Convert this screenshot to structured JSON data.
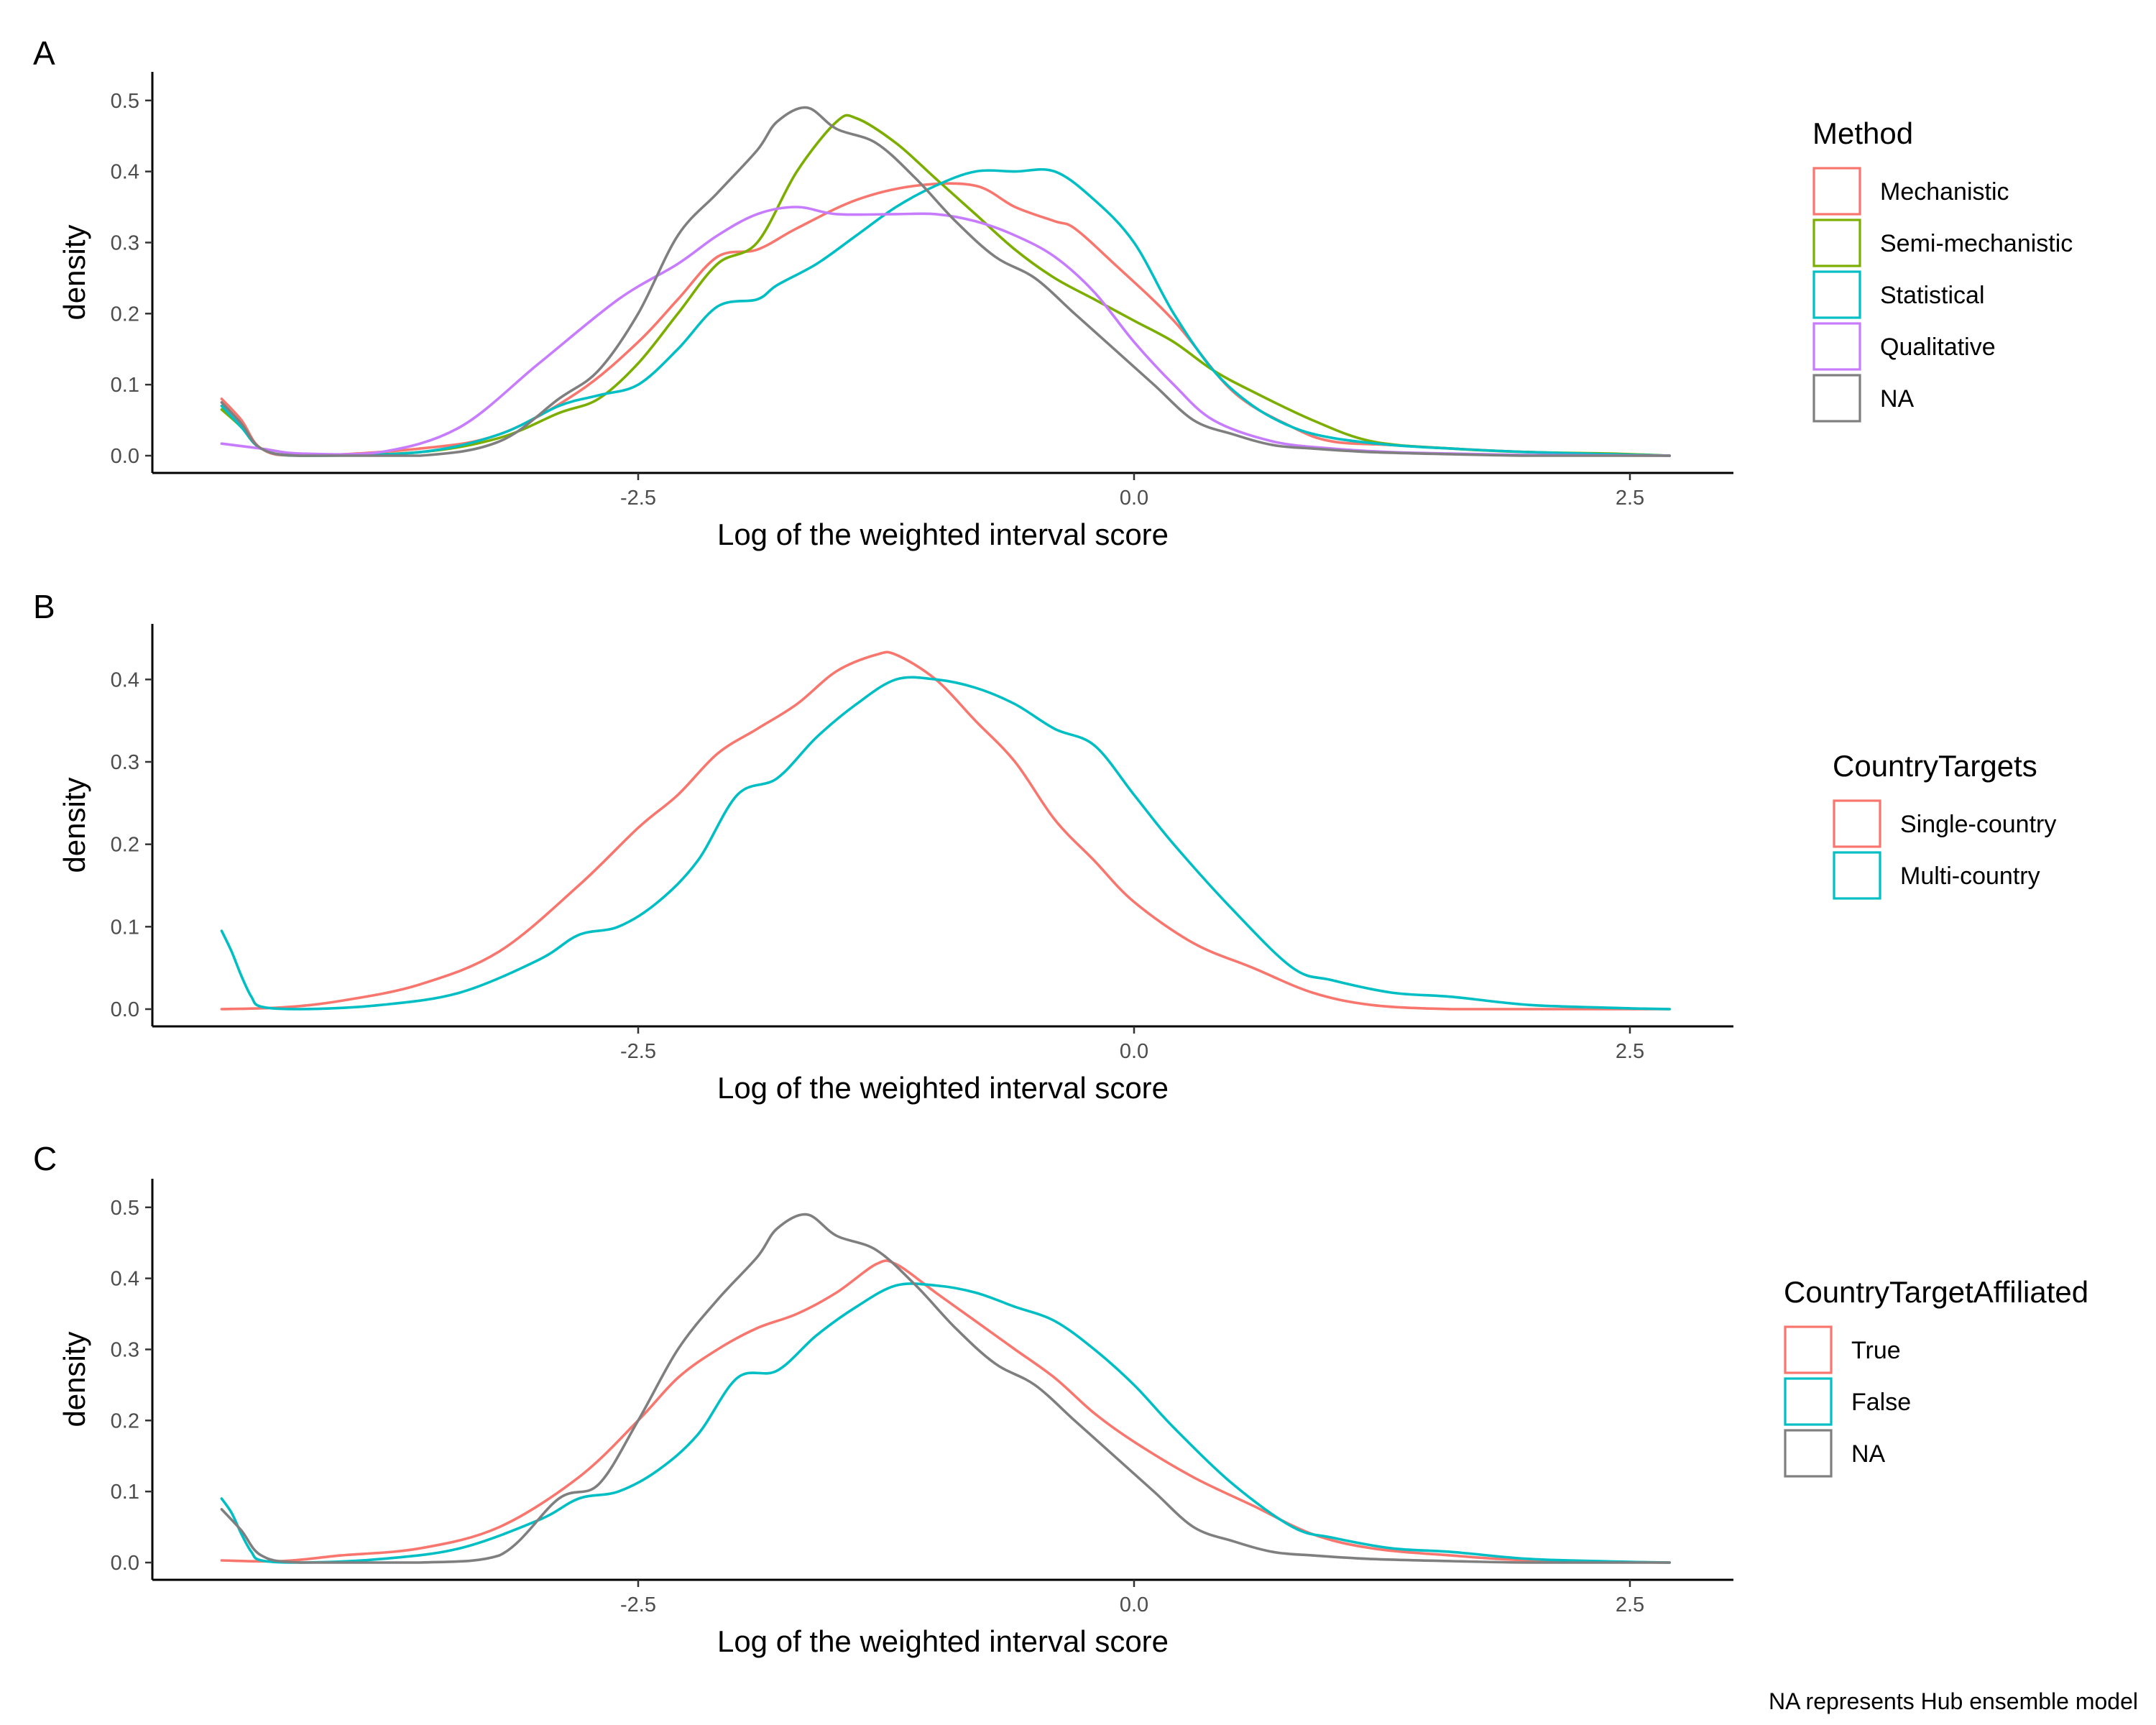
{
  "caption": "NA represents Hub ensemble model",
  "colors": {
    "red": "#F8766D",
    "green": "#7CAE00",
    "cyan": "#00BFC4",
    "purple": "#C77CFF",
    "gray": "#7F7F7F"
  },
  "chart_data": [
    {
      "type": "line",
      "tag": "A",
      "xlabel": "Log of the weighted interval score",
      "ylabel": "density",
      "xlim": [
        -4.8,
        3.0
      ],
      "ylim": [
        0,
        0.52
      ],
      "xticks": [
        {
          "v": -2.5,
          "label": "-2.5"
        },
        {
          "v": 0,
          "label": "0.0"
        },
        {
          "v": 2.5,
          "label": "2.5"
        }
      ],
      "yticks": [
        {
          "v": 0,
          "label": "0.0"
        },
        {
          "v": 0.1,
          "label": "0.1"
        },
        {
          "v": 0.2,
          "label": "0.2"
        },
        {
          "v": 0.3,
          "label": "0.3"
        },
        {
          "v": 0.4,
          "label": "0.4"
        },
        {
          "v": 0.5,
          "label": "0.5"
        }
      ],
      "legend_title": "Method",
      "legend_position": "right",
      "series": [
        {
          "name": "Mechanistic",
          "color": "#F8766D",
          "x": [
            -4.6,
            -4.5,
            -4.4,
            -4.2,
            -3.6,
            -3.2,
            -2.8,
            -2.5,
            -2.3,
            -2.1,
            -1.9,
            -1.7,
            -1.4,
            -1.1,
            -0.8,
            -0.6,
            -0.4,
            -0.3,
            -0.1,
            0.2,
            0.5,
            0.8,
            1.0,
            1.3,
            1.6,
            2.0,
            2.5,
            2.7
          ],
          "y": [
            0.08,
            0.05,
            0.01,
            0.0,
            0.01,
            0.03,
            0.09,
            0.16,
            0.22,
            0.28,
            0.29,
            0.32,
            0.36,
            0.38,
            0.38,
            0.35,
            0.33,
            0.32,
            0.27,
            0.19,
            0.09,
            0.04,
            0.02,
            0.015,
            0.01,
            0.005,
            0.001,
            0.0
          ]
        },
        {
          "name": "Semi-mechanistic",
          "color": "#7CAE00",
          "x": [
            -4.6,
            -4.5,
            -4.4,
            -4.2,
            -3.6,
            -3.2,
            -2.9,
            -2.7,
            -2.5,
            -2.3,
            -2.1,
            -1.9,
            -1.7,
            -1.5,
            -1.4,
            -1.2,
            -1.0,
            -0.8,
            -0.6,
            -0.4,
            -0.2,
            0.0,
            0.2,
            0.4,
            0.6,
            0.9,
            1.2,
            1.6,
            2.0,
            2.4,
            2.7
          ],
          "y": [
            0.065,
            0.04,
            0.01,
            0.0,
            0.005,
            0.025,
            0.06,
            0.08,
            0.13,
            0.2,
            0.27,
            0.3,
            0.4,
            0.47,
            0.475,
            0.44,
            0.39,
            0.34,
            0.29,
            0.25,
            0.22,
            0.19,
            0.16,
            0.12,
            0.09,
            0.05,
            0.02,
            0.01,
            0.005,
            0.003,
            0.0
          ]
        },
        {
          "name": "Statistical",
          "color": "#00BFC4",
          "x": [
            -4.6,
            -4.5,
            -4.4,
            -4.2,
            -3.6,
            -3.2,
            -2.9,
            -2.7,
            -2.5,
            -2.3,
            -2.1,
            -1.9,
            -1.8,
            -1.6,
            -1.4,
            -1.2,
            -1.0,
            -0.8,
            -0.6,
            -0.4,
            -0.2,
            0.0,
            0.2,
            0.4,
            0.6,
            0.8,
            1.0,
            1.3,
            1.6,
            2.0,
            2.7
          ],
          "y": [
            0.07,
            0.04,
            0.01,
            0.0,
            0.005,
            0.03,
            0.07,
            0.085,
            0.1,
            0.15,
            0.21,
            0.22,
            0.24,
            0.27,
            0.31,
            0.35,
            0.38,
            0.4,
            0.4,
            0.4,
            0.36,
            0.3,
            0.2,
            0.12,
            0.07,
            0.04,
            0.025,
            0.015,
            0.01,
            0.005,
            0.0
          ]
        },
        {
          "name": "Qualitative",
          "color": "#C77CFF",
          "x": [
            -4.6,
            -4.4,
            -4.2,
            -3.8,
            -3.4,
            -3.0,
            -2.6,
            -2.3,
            -2.1,
            -1.9,
            -1.7,
            -1.5,
            -1.2,
            -1.0,
            -0.8,
            -0.6,
            -0.4,
            -0.2,
            0.0,
            0.2,
            0.4,
            0.7,
            1.0,
            1.3,
            1.6,
            2.0,
            2.7
          ],
          "y": [
            0.017,
            0.01,
            0.003,
            0.005,
            0.04,
            0.13,
            0.22,
            0.27,
            0.31,
            0.34,
            0.35,
            0.34,
            0.34,
            0.34,
            0.33,
            0.31,
            0.28,
            0.23,
            0.16,
            0.1,
            0.05,
            0.02,
            0.01,
            0.005,
            0.003,
            0.001,
            0.0
          ]
        },
        {
          "name": "NA",
          "color": "#7F7F7F",
          "x": [
            -4.6,
            -4.5,
            -4.4,
            -4.2,
            -3.6,
            -3.2,
            -2.9,
            -2.7,
            -2.5,
            -2.3,
            -2.1,
            -1.9,
            -1.8,
            -1.65,
            -1.5,
            -1.3,
            -1.1,
            -0.9,
            -0.7,
            -0.5,
            -0.3,
            -0.1,
            0.1,
            0.3,
            0.5,
            0.7,
            0.9,
            1.2,
            1.6,
            2.0,
            2.7
          ],
          "y": [
            0.075,
            0.045,
            0.01,
            0.0,
            0.0,
            0.02,
            0.08,
            0.12,
            0.2,
            0.31,
            0.37,
            0.43,
            0.47,
            0.49,
            0.46,
            0.44,
            0.39,
            0.33,
            0.28,
            0.25,
            0.2,
            0.15,
            0.1,
            0.05,
            0.03,
            0.015,
            0.01,
            0.005,
            0.002,
            0.0,
            0.0
          ]
        }
      ]
    },
    {
      "type": "line",
      "tag": "B",
      "xlabel": "Log of the weighted interval score",
      "ylabel": "density",
      "xlim": [
        -4.8,
        3.0
      ],
      "ylim": [
        0,
        0.45
      ],
      "xticks": [
        {
          "v": -2.5,
          "label": "-2.5"
        },
        {
          "v": 0,
          "label": "0.0"
        },
        {
          "v": 2.5,
          "label": "2.5"
        }
      ],
      "yticks": [
        {
          "v": 0,
          "label": "0.0"
        },
        {
          "v": 0.1,
          "label": "0.1"
        },
        {
          "v": 0.2,
          "label": "0.2"
        },
        {
          "v": 0.3,
          "label": "0.3"
        },
        {
          "v": 0.4,
          "label": "0.4"
        }
      ],
      "legend_title": "CountryTargets",
      "legend_position": "right",
      "series": [
        {
          "name": "Single-country",
          "color": "#F8766D",
          "x": [
            -4.6,
            -4.3,
            -4.0,
            -3.6,
            -3.2,
            -2.8,
            -2.5,
            -2.3,
            -2.1,
            -1.9,
            -1.7,
            -1.5,
            -1.3,
            -1.2,
            -1.0,
            -0.8,
            -0.6,
            -0.4,
            -0.2,
            0.0,
            0.3,
            0.6,
            0.9,
            1.2,
            1.6,
            2.0,
            2.7
          ],
          "y": [
            0.0,
            0.002,
            0.01,
            0.03,
            0.07,
            0.15,
            0.22,
            0.26,
            0.31,
            0.34,
            0.37,
            0.41,
            0.43,
            0.43,
            0.4,
            0.35,
            0.3,
            0.23,
            0.18,
            0.13,
            0.08,
            0.05,
            0.02,
            0.005,
            0.0,
            0.0,
            0.0
          ]
        },
        {
          "name": "Multi-country",
          "color": "#00BFC4",
          "x": [
            -4.6,
            -4.55,
            -4.5,
            -4.45,
            -4.4,
            -4.2,
            -3.8,
            -3.4,
            -3.0,
            -2.8,
            -2.6,
            -2.4,
            -2.2,
            -2.0,
            -1.8,
            -1.6,
            -1.4,
            -1.2,
            -1.0,
            -0.8,
            -0.6,
            -0.4,
            -0.2,
            0.0,
            0.2,
            0.5,
            0.8,
            1.0,
            1.3,
            1.6,
            2.0,
            2.5,
            2.7
          ],
          "y": [
            0.095,
            0.07,
            0.04,
            0.015,
            0.003,
            0.0,
            0.005,
            0.02,
            0.06,
            0.09,
            0.1,
            0.13,
            0.18,
            0.26,
            0.28,
            0.33,
            0.37,
            0.4,
            0.4,
            0.39,
            0.37,
            0.34,
            0.32,
            0.26,
            0.2,
            0.12,
            0.05,
            0.035,
            0.02,
            0.015,
            0.005,
            0.001,
            0.0
          ]
        }
      ]
    },
    {
      "type": "line",
      "tag": "C",
      "xlabel": "Log of the weighted interval score",
      "ylabel": "density",
      "xlim": [
        -4.8,
        3.0
      ],
      "ylim": [
        0,
        0.52
      ],
      "xticks": [
        {
          "v": -2.5,
          "label": "-2.5"
        },
        {
          "v": 0,
          "label": "0.0"
        },
        {
          "v": 2.5,
          "label": "2.5"
        }
      ],
      "yticks": [
        {
          "v": 0,
          "label": "0.0"
        },
        {
          "v": 0.1,
          "label": "0.1"
        },
        {
          "v": 0.2,
          "label": "0.2"
        },
        {
          "v": 0.3,
          "label": "0.3"
        },
        {
          "v": 0.4,
          "label": "0.4"
        },
        {
          "v": 0.5,
          "label": "0.5"
        }
      ],
      "legend_title": "CountryTargetAffiliated",
      "legend_position": "right",
      "series": [
        {
          "name": "True",
          "color": "#F8766D",
          "x": [
            -4.6,
            -4.3,
            -4.0,
            -3.6,
            -3.2,
            -2.8,
            -2.5,
            -2.3,
            -2.1,
            -1.9,
            -1.7,
            -1.5,
            -1.3,
            -1.2,
            -1.0,
            -0.8,
            -0.6,
            -0.4,
            -0.2,
            0.0,
            0.3,
            0.6,
            0.9,
            1.2,
            1.6,
            2.0,
            2.7
          ],
          "y": [
            0.003,
            0.002,
            0.01,
            0.02,
            0.05,
            0.12,
            0.2,
            0.26,
            0.3,
            0.33,
            0.35,
            0.38,
            0.42,
            0.42,
            0.38,
            0.34,
            0.3,
            0.26,
            0.21,
            0.17,
            0.12,
            0.08,
            0.04,
            0.02,
            0.01,
            0.003,
            0.0
          ]
        },
        {
          "name": "False",
          "color": "#00BFC4",
          "x": [
            -4.6,
            -4.55,
            -4.5,
            -4.45,
            -4.4,
            -4.2,
            -3.8,
            -3.4,
            -3.0,
            -2.8,
            -2.6,
            -2.4,
            -2.2,
            -2.0,
            -1.8,
            -1.6,
            -1.4,
            -1.2,
            -1.0,
            -0.8,
            -0.6,
            -0.4,
            -0.2,
            0.0,
            0.2,
            0.5,
            0.8,
            1.0,
            1.3,
            1.6,
            2.0,
            2.5,
            2.7
          ],
          "y": [
            0.09,
            0.07,
            0.04,
            0.015,
            0.003,
            0.0,
            0.005,
            0.02,
            0.06,
            0.09,
            0.1,
            0.13,
            0.18,
            0.26,
            0.27,
            0.32,
            0.36,
            0.39,
            0.39,
            0.38,
            0.36,
            0.34,
            0.3,
            0.25,
            0.19,
            0.11,
            0.05,
            0.035,
            0.02,
            0.015,
            0.005,
            0.001,
            0.0
          ]
        },
        {
          "name": "NA",
          "color": "#7F7F7F",
          "x": [
            -4.6,
            -4.5,
            -4.4,
            -4.2,
            -3.6,
            -3.2,
            -2.9,
            -2.7,
            -2.5,
            -2.3,
            -2.1,
            -1.9,
            -1.8,
            -1.65,
            -1.5,
            -1.3,
            -1.1,
            -0.9,
            -0.7,
            -0.5,
            -0.3,
            -0.1,
            0.1,
            0.3,
            0.5,
            0.7,
            0.9,
            1.2,
            1.6,
            2.0,
            2.7
          ],
          "y": [
            0.075,
            0.045,
            0.01,
            0.0,
            0.0,
            0.01,
            0.09,
            0.11,
            0.2,
            0.3,
            0.37,
            0.43,
            0.47,
            0.49,
            0.46,
            0.44,
            0.39,
            0.33,
            0.28,
            0.25,
            0.2,
            0.15,
            0.1,
            0.05,
            0.03,
            0.015,
            0.01,
            0.005,
            0.002,
            0.0,
            0.0
          ]
        }
      ]
    }
  ]
}
